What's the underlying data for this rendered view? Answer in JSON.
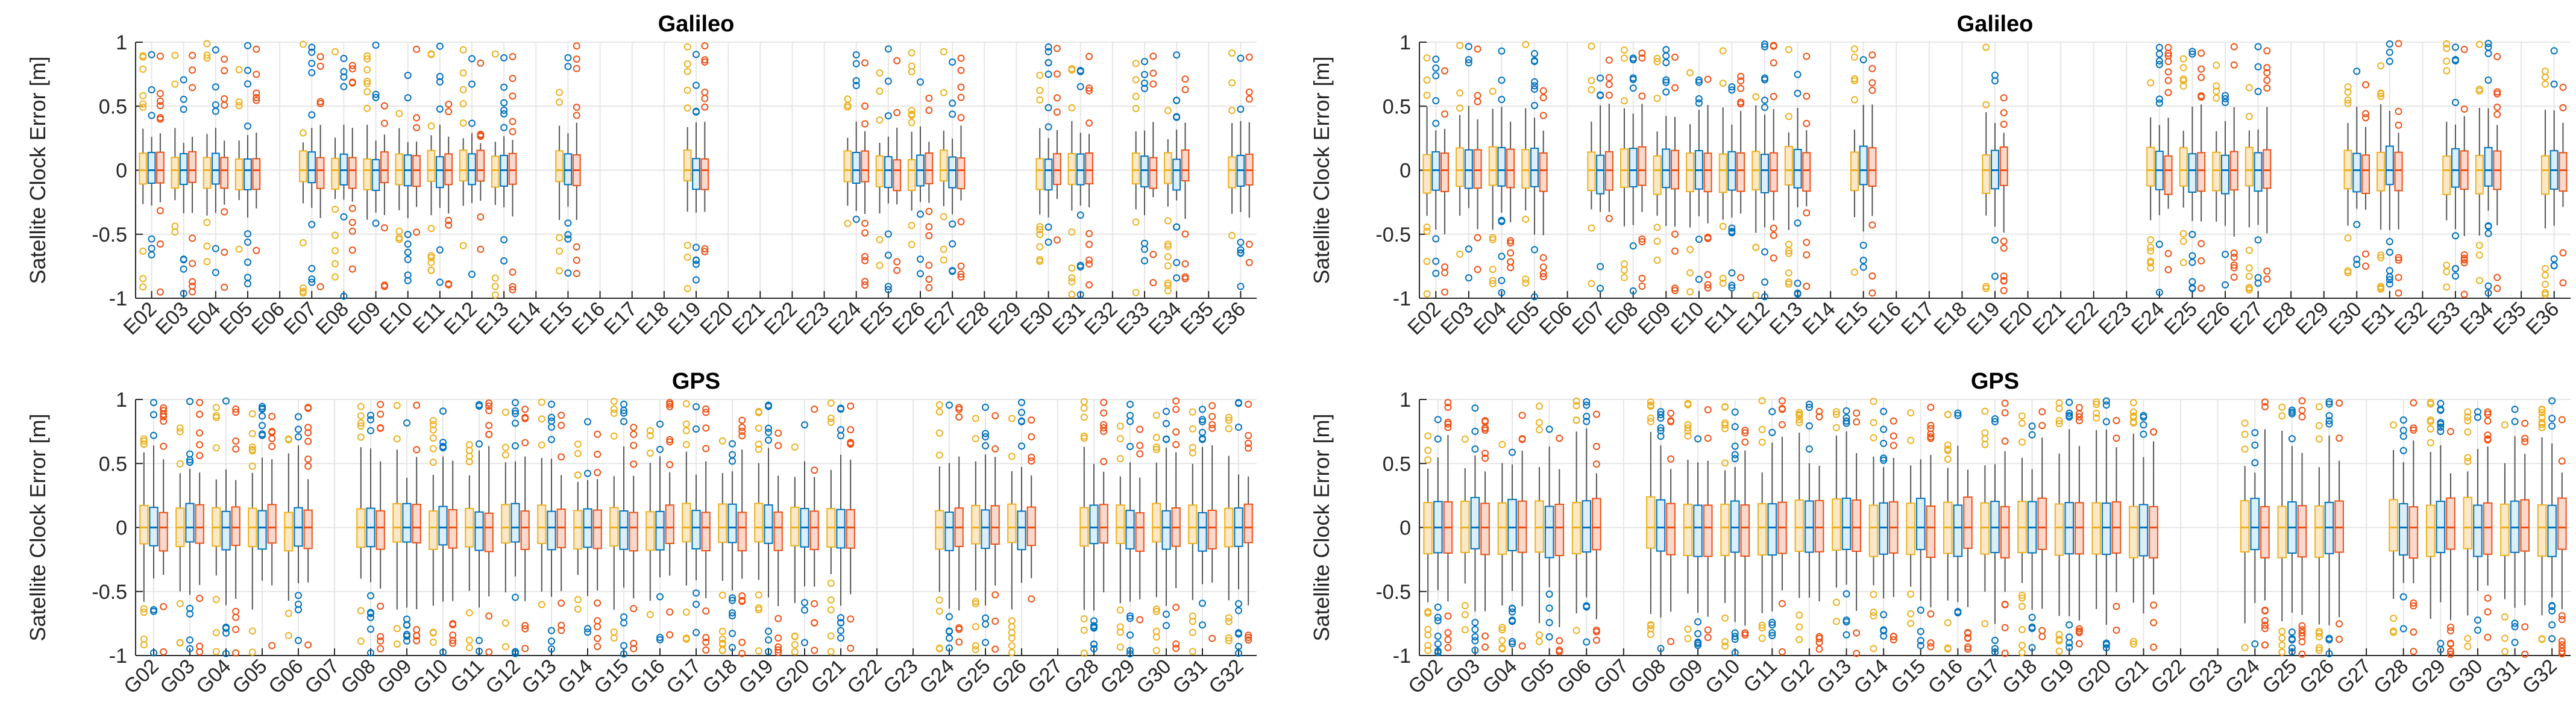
{
  "figure": {
    "colors": {
      "blue": "#0072BD",
      "orange": "#EDB120",
      "red": "#EF5014",
      "light_blue": "#DCEFF9",
      "light_orange": "#FBE8C8",
      "light_red": "#F9D9CC",
      "grid": "#E6E6E6",
      "axis": "#262626"
    }
  },
  "chart_data": [
    {
      "type": "boxplot",
      "title": "Galileo",
      "ylabel": "Satellite Clock Error [m]",
      "ylim": [
        -1,
        1
      ],
      "yticks": [
        "-1",
        "-0.5",
        "0",
        "0.5",
        "1"
      ],
      "grid": true,
      "categories": [
        "E02",
        "E03",
        "E04",
        "E05",
        "E06",
        "E07",
        "E08",
        "E09",
        "E10",
        "E11",
        "E12",
        "E13",
        "E14",
        "E15",
        "E16",
        "E17",
        "E18",
        "E19",
        "E20",
        "E21",
        "E22",
        "E23",
        "E24",
        "E25",
        "E26",
        "E27",
        "E28",
        "E29",
        "E30",
        "E31",
        "E32",
        "E33",
        "E34",
        "E35",
        "E36"
      ],
      "present": [
        "E02",
        "E03",
        "E04",
        "E05",
        "E07",
        "E08",
        "E09",
        "E10",
        "E11",
        "E12",
        "E13",
        "E15",
        "E19",
        "E24",
        "E25",
        "E26",
        "E27",
        "E30",
        "E31",
        "E33",
        "E34",
        "E36"
      ],
      "series_order": [
        "orange",
        "blue",
        "red"
      ],
      "box_median": 0,
      "box_iqr": [
        -0.12,
        0.12
      ],
      "whisker": [
        -0.3,
        0.3
      ]
    },
    {
      "type": "boxplot",
      "title": "Galileo",
      "ylabel": "Satellite Clock Error [m]",
      "ylim": [
        -1,
        1
      ],
      "yticks": [
        "-1",
        "-0.5",
        "0",
        "0.5",
        "1"
      ],
      "grid": true,
      "categories": [
        "E02",
        "E03",
        "E04",
        "E05",
        "E06",
        "E07",
        "E08",
        "E09",
        "E10",
        "E11",
        "E12",
        "E13",
        "E14",
        "E15",
        "E16",
        "E17",
        "E18",
        "E19",
        "E20",
        "E21",
        "E22",
        "E23",
        "E24",
        "E25",
        "E26",
        "E27",
        "E28",
        "E29",
        "E30",
        "E31",
        "E32",
        "E33",
        "E34",
        "E35",
        "E36"
      ],
      "present": [
        "E02",
        "E03",
        "E04",
        "E05",
        "E07",
        "E08",
        "E09",
        "E10",
        "E11",
        "E12",
        "E13",
        "E15",
        "E19",
        "E24",
        "E25",
        "E26",
        "E27",
        "E30",
        "E31",
        "E33",
        "E34",
        "E36"
      ],
      "series_order": [
        "orange",
        "blue",
        "red"
      ],
      "box_median": 0,
      "box_iqr": [
        -0.15,
        0.15
      ],
      "whisker": [
        -0.4,
        0.4
      ]
    },
    {
      "type": "boxplot",
      "title": "GPS",
      "ylabel": "Satellite Clock Error [m]",
      "ylim": [
        -1,
        1
      ],
      "yticks": [
        "-1",
        "-0.5",
        "0",
        "0.5",
        "1"
      ],
      "grid": true,
      "categories": [
        "G02",
        "G03",
        "G04",
        "G05",
        "G06",
        "G07",
        "G08",
        "G09",
        "G10",
        "G11",
        "G12",
        "G13",
        "G14",
        "G15",
        "G16",
        "G17",
        "G18",
        "G19",
        "G20",
        "G21",
        "G22",
        "G23",
        "G24",
        "G25",
        "G26",
        "G27",
        "G28",
        "G29",
        "G30",
        "G31",
        "G32"
      ],
      "present": [
        "G02",
        "G03",
        "G04",
        "G05",
        "G06",
        "G08",
        "G09",
        "G10",
        "G11",
        "G12",
        "G13",
        "G14",
        "G15",
        "G16",
        "G17",
        "G18",
        "G19",
        "G20",
        "G21",
        "G24",
        "G25",
        "G26",
        "G28",
        "G29",
        "G30",
        "G31",
        "G32"
      ],
      "series_order": [
        "orange",
        "blue",
        "red"
      ],
      "box_median": 0,
      "box_iqr": [
        -0.15,
        0.15
      ],
      "whisker": [
        -0.5,
        0.5
      ]
    },
    {
      "type": "boxplot",
      "title": "GPS",
      "ylabel": "Satellite Clock Error [m]",
      "ylim": [
        -1,
        1
      ],
      "yticks": [
        "-1",
        "-0.5",
        "0",
        "0.5",
        "1"
      ],
      "grid": true,
      "categories": [
        "G02",
        "G03",
        "G04",
        "G05",
        "G06",
        "G07",
        "G08",
        "G09",
        "G10",
        "G11",
        "G12",
        "G13",
        "G14",
        "G15",
        "G16",
        "G17",
        "G18",
        "G19",
        "G20",
        "G21",
        "G22",
        "G23",
        "G24",
        "G25",
        "G26",
        "G27",
        "G28",
        "G29",
        "G30",
        "G31",
        "G32"
      ],
      "present": [
        "G02",
        "G03",
        "G04",
        "G05",
        "G06",
        "G08",
        "G09",
        "G10",
        "G11",
        "G12",
        "G13",
        "G14",
        "G15",
        "G16",
        "G17",
        "G18",
        "G19",
        "G20",
        "G21",
        "G24",
        "G25",
        "G26",
        "G28",
        "G29",
        "G30",
        "G31",
        "G32"
      ],
      "series_order": [
        "orange",
        "blue",
        "red"
      ],
      "box_median": 0,
      "box_iqr": [
        -0.2,
        0.2
      ],
      "whisker": [
        -0.6,
        0.6
      ]
    }
  ]
}
